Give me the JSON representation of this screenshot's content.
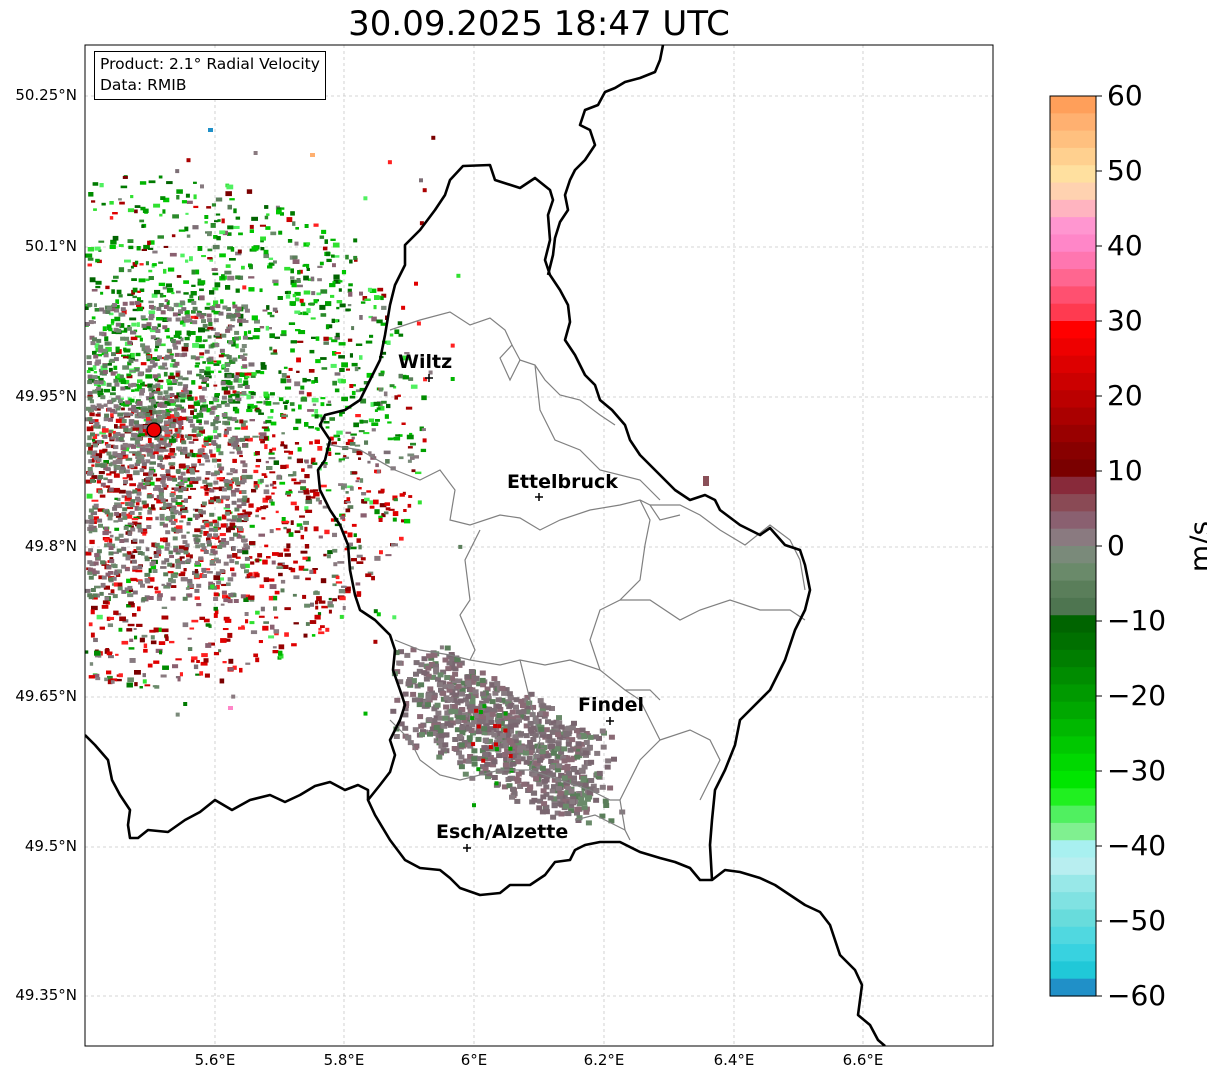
{
  "title": "30.09.2025 18:47 UTC",
  "product_box": {
    "line1": "Product: 2.1° Radial Velocity",
    "line2": "Data: RMIB"
  },
  "lat_ticks": [
    "50.25°N",
    "50.1°N",
    "49.95°N",
    "49.8°N",
    "49.65°N",
    "49.5°N",
    "49.35°N"
  ],
  "lon_ticks": [
    "5.6°E",
    "5.8°E",
    "6°E",
    "6.2°E",
    "6.4°E",
    "6.6°E"
  ],
  "cities": [
    {
      "name": "Wiltz"
    },
    {
      "name": "Ettelbruck"
    },
    {
      "name": "Findel"
    },
    {
      "name": "Esch/Alzette"
    }
  ],
  "colorbar": {
    "label": "m/s",
    "ticks": [
      "60",
      "50",
      "40",
      "30",
      "20",
      "10",
      "0",
      "−10",
      "−20",
      "−30",
      "−40",
      "−50",
      "−60"
    ],
    "range": [
      -60,
      60
    ],
    "colors_top_to_bottom": [
      "#ff9f5a",
      "#ffb070",
      "#ffc07f",
      "#ffd08f",
      "#ffe09f",
      "#ffd2b0",
      "#ffb4c0",
      "#ff96d0",
      "#ff86c8",
      "#ff76b0",
      "#ff6690",
      "#ff5070",
      "#ff3a50",
      "#ff0000",
      "#ee0000",
      "#dd0000",
      "#cc0000",
      "#bb0000",
      "#aa0000",
      "#990000",
      "#880000",
      "#7a0000",
      "#882a3a",
      "#8a4a55",
      "#8a6070",
      "#8a7a80",
      "#7a8a7a",
      "#6a8a6a",
      "#5a7e5a",
      "#4e7550",
      "#006400",
      "#007000",
      "#007e00",
      "#008c00",
      "#009a00",
      "#00a800",
      "#00b800",
      "#00c800",
      "#00d800",
      "#00e600",
      "#20f020",
      "#50f060",
      "#80f090",
      "#a8f0f0",
      "#b8eef0",
      "#98e8e8",
      "#80e2e2",
      "#68dcdc",
      "#50d8e0",
      "#38d2e0",
      "#20c8d8",
      "#2090c8"
    ]
  },
  "radar_site_color": "#ff0000"
}
